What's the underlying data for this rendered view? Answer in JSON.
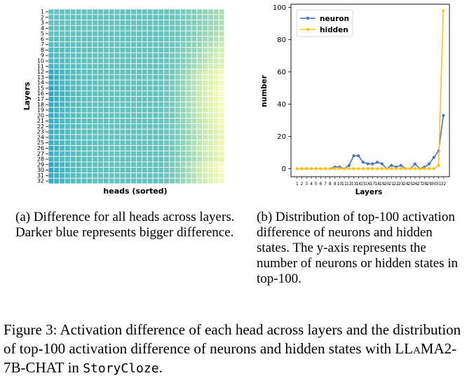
{
  "panel_a": {
    "ylabel": "Layers",
    "xlabel": "heads (sorted)",
    "caption": "(a) Difference for all heads across layers. Darker blue represents bigger difference."
  },
  "panel_b": {
    "ylabel": "number",
    "xlabel": "Layers",
    "caption": "(b) Distribution of top-100 activation difference of neurons and hidden states. The y-axis represents the number of neurons or hidden states in top-100."
  },
  "figure_caption": {
    "prefix": "Figure 3:  Activation difference of each head across layers and the distribution of top-100 activation difference of neurons and hidden states with ",
    "model": "LLaMA2-7B-CHAT",
    "middle": " in ",
    "dataset": "StoryCloze",
    "suffix": "."
  },
  "colors": {
    "neuron": "#4c72c4",
    "hidden": "#f5c518",
    "heat_dark": "#253494",
    "heat_mid": "#41b6c4",
    "heat_light": "#ffffd9"
  },
  "chart_data": [
    {
      "type": "heatmap",
      "ylabel": "Layers",
      "xlabel": "heads (sorted)",
      "rows": [
        "1",
        "2",
        "3",
        "4",
        "5",
        "6",
        "7",
        "8",
        "9",
        "10",
        "11",
        "12",
        "13",
        "14",
        "15",
        "16",
        "17",
        "18",
        "19",
        "20",
        "21",
        "22",
        "23",
        "24",
        "25",
        "26",
        "27",
        "28",
        "29",
        "30",
        "31",
        "32"
      ],
      "n_cols": 32,
      "row_profile": [
        0.45,
        0.45,
        0.45,
        0.45,
        0.48,
        0.5,
        0.55,
        0.6,
        0.62,
        0.64,
        0.68,
        0.8,
        0.85,
        0.82,
        0.86,
        0.85,
        0.85,
        0.84,
        0.82,
        0.8,
        0.78,
        0.76,
        0.74,
        0.72,
        0.76,
        0.8,
        0.75,
        0.72,
        0.88,
        0.86,
        0.82,
        0.82
      ]
    },
    {
      "type": "line",
      "xlabel": "Layers",
      "ylabel": "number",
      "x": [
        1,
        2,
        3,
        4,
        5,
        6,
        7,
        8,
        9,
        10,
        11,
        12,
        13,
        14,
        15,
        16,
        17,
        18,
        19,
        20,
        21,
        22,
        23,
        24,
        25,
        26,
        27,
        28,
        29,
        30,
        31,
        32
      ],
      "ylim": [
        -5,
        102
      ],
      "yticks": [
        0,
        20,
        40,
        60,
        80,
        100
      ],
      "legend": "top-left",
      "series": [
        {
          "name": "neuron",
          "values": [
            0,
            0,
            0,
            0,
            0,
            0,
            0,
            0,
            1,
            1,
            0,
            2,
            8,
            8,
            4,
            3,
            3,
            4,
            3,
            0,
            2,
            1,
            2,
            0,
            0,
            3,
            0,
            1,
            3,
            7,
            11,
            33
          ]
        },
        {
          "name": "hidden",
          "values": [
            0,
            0,
            0,
            0,
            0,
            0,
            0,
            0,
            0,
            0,
            0,
            0,
            0,
            0,
            0,
            0,
            0,
            0,
            0,
            0,
            0,
            0,
            0,
            0,
            0,
            0,
            0,
            0,
            0,
            0,
            2,
            98
          ]
        }
      ]
    }
  ]
}
